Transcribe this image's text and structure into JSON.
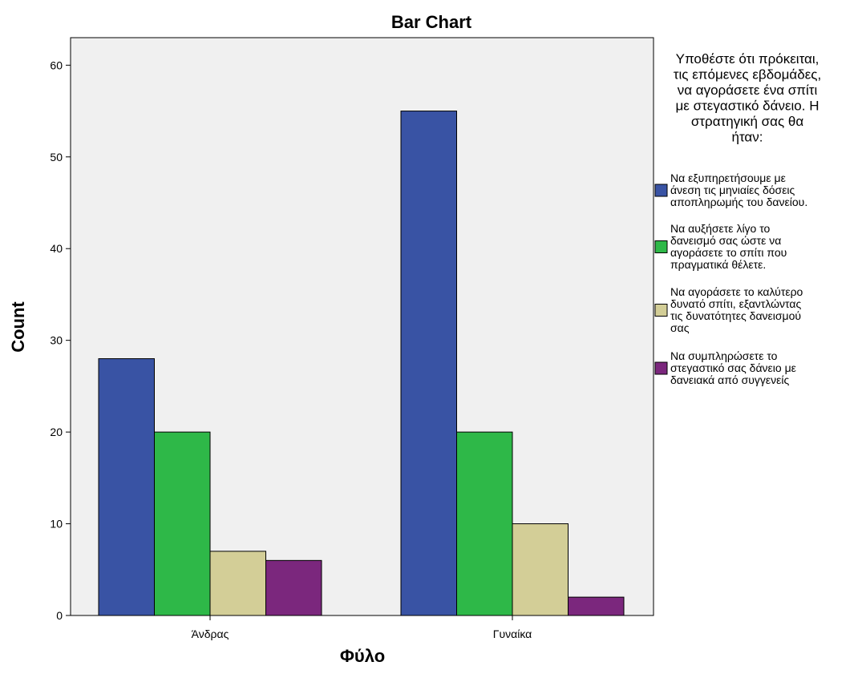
{
  "chart_data": {
    "type": "bar",
    "title": "Bar Chart",
    "xlabel": "Φύλο",
    "ylabel": "Count",
    "categories": [
      "Άνδρας",
      "Γυναίκα"
    ],
    "ylim": [
      0,
      63
    ],
    "yticks": [
      0,
      10,
      20,
      30,
      40,
      50,
      60
    ],
    "grid": false,
    "legend_position": "right",
    "legend_title_lines": [
      "Υποθέστε ότι πρόκειται,",
      "τις επόμενες εβδομάδες,",
      "να αγοράσετε ένα σπίτι",
      "με στεγαστικό δάνειο. Η",
      "στρατηγική σας θα",
      "ήταν:"
    ],
    "series": [
      {
        "name": "Να εξυπηρετήσουμε με άνεση τις μηνιαίες δόσεις αποπληρωμής του δανείου.",
        "legend_lines": [
          "Να εξυπηρετήσουμε με",
          "άνεση τις μηνιαίες δόσεις",
          "αποπληρωμής του δανείου."
        ],
        "color": "#3953A4",
        "values": [
          28,
          55
        ]
      },
      {
        "name": "Να αυξήσετε λίγο το δανεισμό σας ώστε να αγοράσετε το σπίτι που πραγματικά θέλετε.",
        "legend_lines": [
          "Να αυξήσετε λίγο το",
          "δανεισμό σας ώστε να",
          "αγοράσετε το σπίτι που",
          "πραγματικά θέλετε."
        ],
        "color": "#2EB848",
        "values": [
          20,
          20
        ]
      },
      {
        "name": "Να αγοράσετε το καλύτερο δυνατό σπίτι, εξαντλώντας τις δυνατότητες δανεισμού σας",
        "legend_lines": [
          "Να αγοράσετε το καλύτερο",
          "δυνατό σπίτι, εξαντλώντας",
          "τις δυνατότητες δανεισμού",
          "σας"
        ],
        "color": "#D3CE97",
        "values": [
          7,
          10
        ]
      },
      {
        "name": "Να συμπληρώσετε το στεγαστικό σας δάνειο με δανειακά από συγγενείς",
        "legend_lines": [
          "Να συμπληρώσετε το",
          "στεγαστικό σας δάνειο με",
          "δανειακά από συγγενείς"
        ],
        "color": "#7B277D",
        "values": [
          6,
          2
        ]
      }
    ],
    "colors": {
      "plot_background": "#F0F0F0",
      "bar_outline": "#000000"
    }
  }
}
